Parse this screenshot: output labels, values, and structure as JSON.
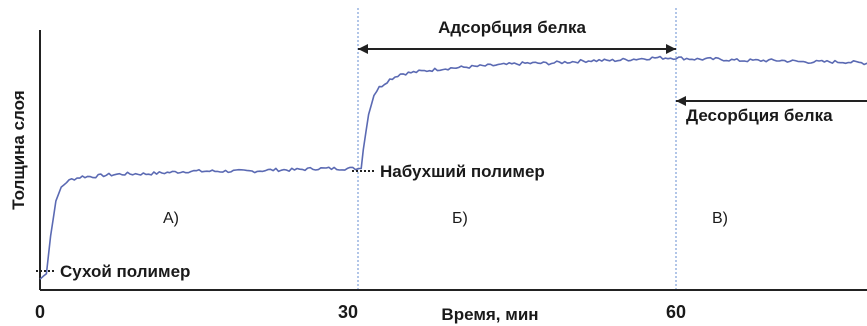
{
  "chart_data": {
    "type": "line",
    "title": "",
    "xlabel": "Время, мин",
    "ylabel": "Толщина слоя",
    "xlim": [
      0,
      80
    ],
    "ylim": [
      0,
      1
    ],
    "x_ticks": [
      "0",
      "30",
      "60"
    ],
    "x_tick_values": [
      0,
      30,
      60
    ],
    "grid": false,
    "legend": "none",
    "colors": {
      "line": "#5b6ab3",
      "guide": "#7fa0d8",
      "axis": "#222222",
      "text": "#1a1a1a"
    },
    "series": [
      {
        "x": [
          0,
          0.6,
          1,
          1.5,
          2,
          2.5,
          3,
          4,
          5,
          6,
          8,
          10,
          12,
          14,
          16,
          18,
          20,
          22,
          24,
          26,
          28,
          29.5,
          30.3,
          30.5,
          31,
          31.5,
          32,
          33,
          34,
          36,
          38,
          40,
          42,
          44,
          46,
          48,
          50,
          52,
          54,
          56,
          58,
          60,
          62,
          64,
          66,
          68,
          70,
          72,
          74,
          76,
          78,
          80
        ],
        "y": [
          0.04,
          0.06,
          0.2,
          0.33,
          0.38,
          0.4,
          0.41,
          0.42,
          0.42,
          0.425,
          0.43,
          0.43,
          0.435,
          0.44,
          0.44,
          0.44,
          0.44,
          0.445,
          0.445,
          0.45,
          0.45,
          0.45,
          0.45,
          0.52,
          0.65,
          0.72,
          0.75,
          0.78,
          0.8,
          0.81,
          0.82,
          0.825,
          0.83,
          0.835,
          0.84,
          0.84,
          0.845,
          0.85,
          0.85,
          0.855,
          0.86,
          0.86,
          0.855,
          0.855,
          0.85,
          0.85,
          0.85,
          0.845,
          0.845,
          0.845,
          0.84,
          0.84
        ]
      }
    ],
    "guides_x": [
      30,
      60
    ],
    "annotations": {
      "dry_polymer": "Сухой полимер",
      "swollen_polymer": "Набухший полимер",
      "adsorption": "Адсорбция белка",
      "desorption": "Десорбция белка",
      "phase_a": "А)",
      "phase_b": "Б)",
      "phase_c": "В)"
    }
  }
}
